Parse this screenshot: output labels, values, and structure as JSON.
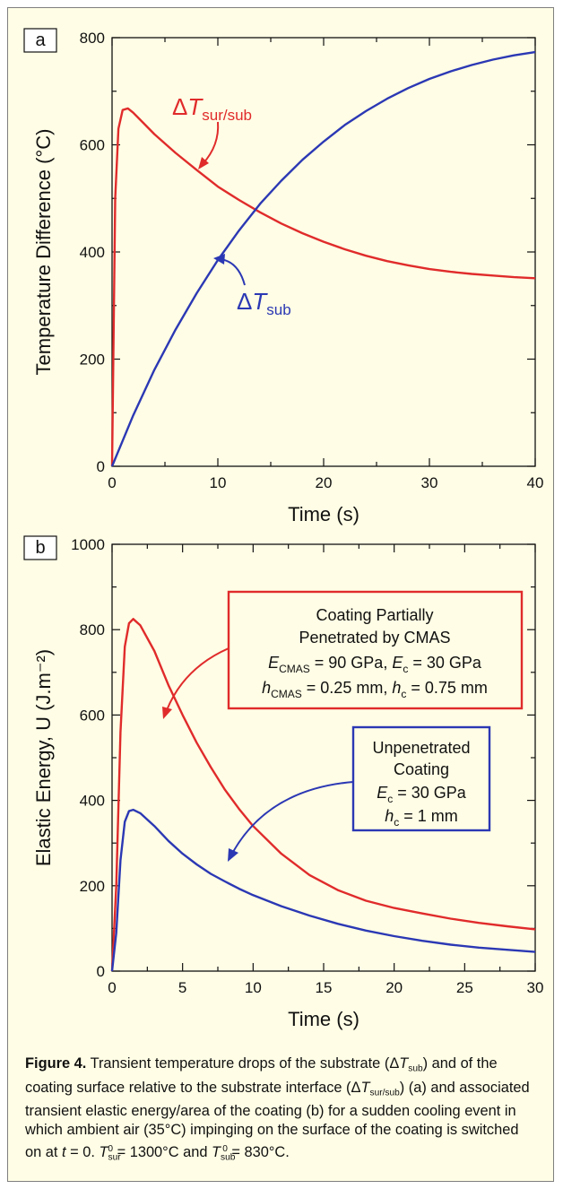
{
  "colors": {
    "red": "#e02b2b",
    "blue": "#2b38b4",
    "plot_bg": "#fffde5"
  },
  "panels": [
    {
      "panel_label": "a",
      "ylabel": "Temperature Difference (°C)",
      "xlabel": "Time (s)",
      "annotations": [
        {
          "id": "sur_sub",
          "text": "Δ",
          "var": "T",
          "sub": "sur/sub"
        },
        {
          "id": "sub",
          "text": "Δ",
          "var": "T",
          "sub": "sub"
        }
      ]
    },
    {
      "panel_label": "b",
      "ylabel": "Elastic Energy, U (J.m⁻²)",
      "xlabel": "Time (s)",
      "boxes": [
        {
          "id": "red_box",
          "lines": [
            "Coating Partially",
            "Penetrated by CMAS",
            "E_CMAS = 90 GPa, E_c = 30 GPa",
            "h_CMAS = 0.25 mm, h_c = 0.75 mm"
          ]
        },
        {
          "id": "blue_box",
          "lines": [
            "Unpenetrated",
            "Coating",
            "E_c = 30 GPa",
            "h_c = 1 mm"
          ]
        }
      ]
    }
  ],
  "chart_data": [
    {
      "type": "line",
      "xlabel": "Time (s)",
      "ylabel": "Temperature Difference (°C)",
      "xlim": [
        0,
        40
      ],
      "ylim": [
        0,
        800
      ],
      "xticks": [
        0,
        10,
        20,
        30,
        40
      ],
      "yticks": [
        0,
        200,
        400,
        600,
        800
      ],
      "series": [
        {
          "name": "ΔT sur/sub",
          "color": "#e02b2b",
          "x": [
            0,
            0.3,
            0.6,
            1.0,
            1.5,
            2,
            3,
            4,
            6,
            8,
            10,
            12,
            14,
            16,
            18,
            20,
            22,
            24,
            26,
            28,
            30,
            32,
            34,
            36,
            38,
            40
          ],
          "y": [
            0,
            500,
            630,
            665,
            668,
            660,
            640,
            620,
            585,
            553,
            522,
            497,
            474,
            453,
            435,
            419,
            405,
            393,
            383,
            375,
            368,
            363,
            359,
            356,
            353,
            351
          ]
        },
        {
          "name": "ΔT sub",
          "color": "#2b38b4",
          "x": [
            0,
            2,
            4,
            6,
            8,
            10,
            12,
            14,
            16,
            18,
            20,
            22,
            24,
            26,
            28,
            30,
            32,
            34,
            36,
            38,
            40
          ],
          "y": [
            0,
            95,
            180,
            255,
            323,
            385,
            440,
            490,
            533,
            572,
            606,
            637,
            663,
            686,
            706,
            723,
            737,
            749,
            759,
            767,
            773
          ]
        }
      ]
    },
    {
      "type": "line",
      "xlabel": "Time (s)",
      "ylabel": "Elastic Energy, U (J.m⁻²)",
      "xlim": [
        0,
        30
      ],
      "ylim": [
        0,
        1000
      ],
      "xticks": [
        0,
        5,
        10,
        15,
        20,
        25,
        30
      ],
      "yticks": [
        0,
        200,
        400,
        600,
        800,
        1000
      ],
      "series": [
        {
          "name": "Coating Partially Penetrated by CMAS",
          "color": "#e02b2b",
          "x": [
            0,
            0.3,
            0.6,
            0.9,
            1.2,
            1.5,
            2,
            3,
            4,
            5,
            6,
            7,
            8,
            9,
            10,
            12,
            14,
            16,
            18,
            20,
            22,
            24,
            26,
            28,
            30
          ],
          "y": [
            0,
            200,
            560,
            760,
            815,
            825,
            810,
            750,
            670,
            600,
            535,
            478,
            425,
            380,
            340,
            275,
            225,
            190,
            165,
            148,
            135,
            123,
            113,
            105,
            98
          ]
        },
        {
          "name": "Unpenetrated Coating",
          "color": "#2b38b4",
          "x": [
            0,
            0.3,
            0.6,
            0.9,
            1.2,
            1.5,
            2,
            3,
            4,
            5,
            6,
            7,
            8,
            9,
            10,
            12,
            14,
            16,
            18,
            20,
            22,
            24,
            26,
            28,
            30
          ],
          "y": [
            0,
            90,
            260,
            350,
            375,
            378,
            370,
            340,
            305,
            275,
            250,
            228,
            210,
            193,
            178,
            152,
            130,
            111,
            95,
            82,
            71,
            62,
            55,
            50,
            45
          ]
        }
      ]
    }
  ],
  "caption": {
    "label": "Figure 4.",
    "text_1": " Transient temperature drops of the substrate (Δ",
    "text_2": ") and of the coating surface relative to the substrate interface (Δ",
    "text_3": ") (a) and associated transient elastic energy/area of the coating (b) for a sudden cooling event in which ambient air (35°C) impinging on the surface of the coating is switched on at ",
    "text_4": " = 0. ",
    "text_5": " = 1300°C and ",
    "text_6": " = 830°C."
  }
}
